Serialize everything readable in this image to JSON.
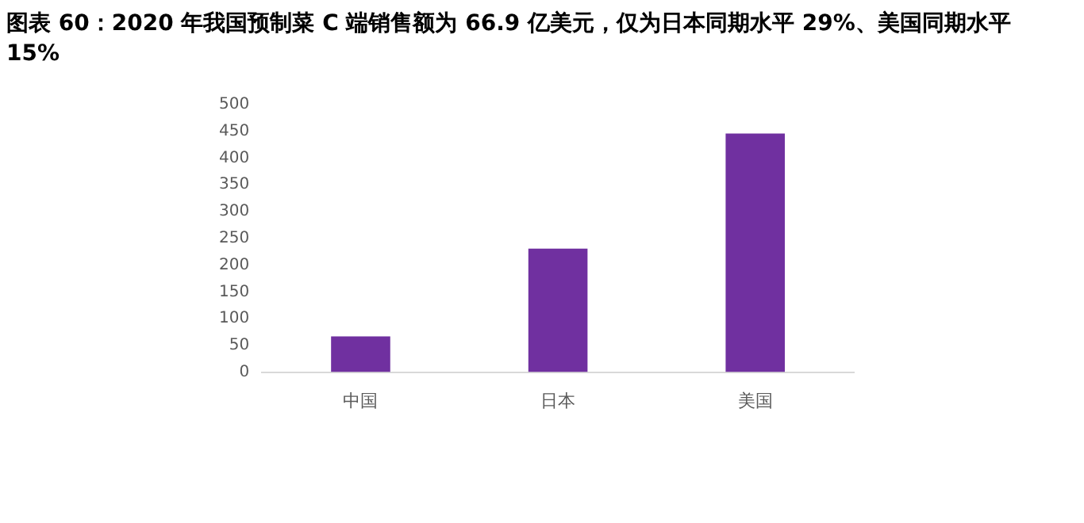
{
  "chart_data": {
    "type": "bar",
    "title": "图表 60：2020 年我国预制菜 C 端销售额为 66.9 亿美元，仅为日本同期水平 29%、美国同期水平 15%",
    "categories": [
      "中国",
      "日本",
      "美国"
    ],
    "values": [
      66.9,
      231,
      446
    ],
    "color": "#7030a0",
    "ylim": [
      0,
      500
    ],
    "yticks": [
      0,
      50,
      100,
      150,
      200,
      250,
      300,
      350,
      400,
      450,
      500
    ],
    "grid": false,
    "legend": false
  }
}
